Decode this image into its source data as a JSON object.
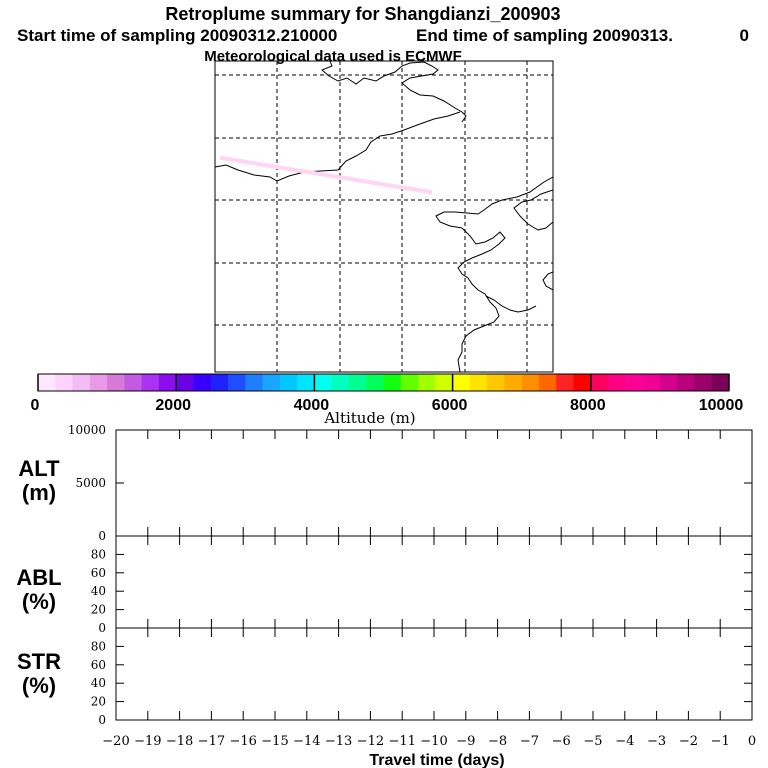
{
  "header": {
    "title": "Retroplume summary for Shangdianzi_200903",
    "start_time": "Start time of sampling 20090312.210000",
    "end_time": "End time of sampling 20090313.",
    "end_time_suffix": "0",
    "met_data": "Meteorological data used is ECMWF"
  },
  "colors": {
    "plume": "#ffd4f4",
    "colorbar": [
      "#ffe8ff",
      "#ffd2fb",
      "#f4bcf4",
      "#e89ae8",
      "#d67ad6",
      "#c35ae4",
      "#aa32f0",
      "#8a0ef0",
      "#6a00e4",
      "#3a00ff",
      "#1e22ff",
      "#1e4eff",
      "#1e7eff",
      "#18a6ff",
      "#00c8ff",
      "#00e6ff",
      "#00ffee",
      "#00ffc0",
      "#00ff90",
      "#00ff5a",
      "#12ff12",
      "#62ff00",
      "#a2ff00",
      "#d2ff00",
      "#ffff00",
      "#ffe400",
      "#ffc800",
      "#ffac00",
      "#ff8e00",
      "#ff6800",
      "#ff2424",
      "#ff0000",
      "#ff0060",
      "#ff0082",
      "#ff0096",
      "#f20096",
      "#d2008c",
      "#b8007a",
      "#9a006a",
      "#7a005a"
    ]
  },
  "chart_data": [
    {
      "type": "map",
      "description_visible": "Trajectory map (coastline, dashed lat/lon grid)",
      "plume_trace": {
        "color": "#ffd4f4",
        "altitude_range_m": [
          0,
          500
        ]
      }
    },
    {
      "type": "colorbar",
      "xlabel": "Altitude (m)",
      "range": [
        0,
        10000
      ],
      "tick_labels": [
        "0",
        "2000",
        "4000",
        "6000",
        "8000",
        "10000"
      ],
      "n_bins": 40
    },
    {
      "type": "line",
      "panel_label": "ALT",
      "panel_unit": "(m)",
      "ylim": [
        0,
        10000
      ],
      "ytick_labels": [
        "0",
        "5000",
        "10000"
      ],
      "series": []
    },
    {
      "type": "line",
      "panel_label": "ABL",
      "panel_unit": "(%)",
      "ylim": [
        0,
        100
      ],
      "ytick_labels": [
        "0",
        "20",
        "40",
        "60",
        "80"
      ],
      "series": []
    },
    {
      "type": "line",
      "panel_label": "STR",
      "panel_unit": "(%)",
      "ylim": [
        0,
        100
      ],
      "ytick_labels": [
        "0",
        "20",
        "40",
        "60",
        "80"
      ],
      "series": []
    },
    {
      "type": "axis",
      "xlabel": "Travel time (days)",
      "xlim": [
        -20,
        0
      ],
      "xtick_labels": [
        "−20",
        "−19",
        "−18",
        "−17",
        "−16",
        "−15",
        "−14",
        "−13",
        "−12",
        "−11",
        "−10",
        "−9",
        "−8",
        "−7",
        "−6",
        "−5",
        "−4",
        "−3",
        "−2",
        "−1",
        "0"
      ]
    }
  ]
}
